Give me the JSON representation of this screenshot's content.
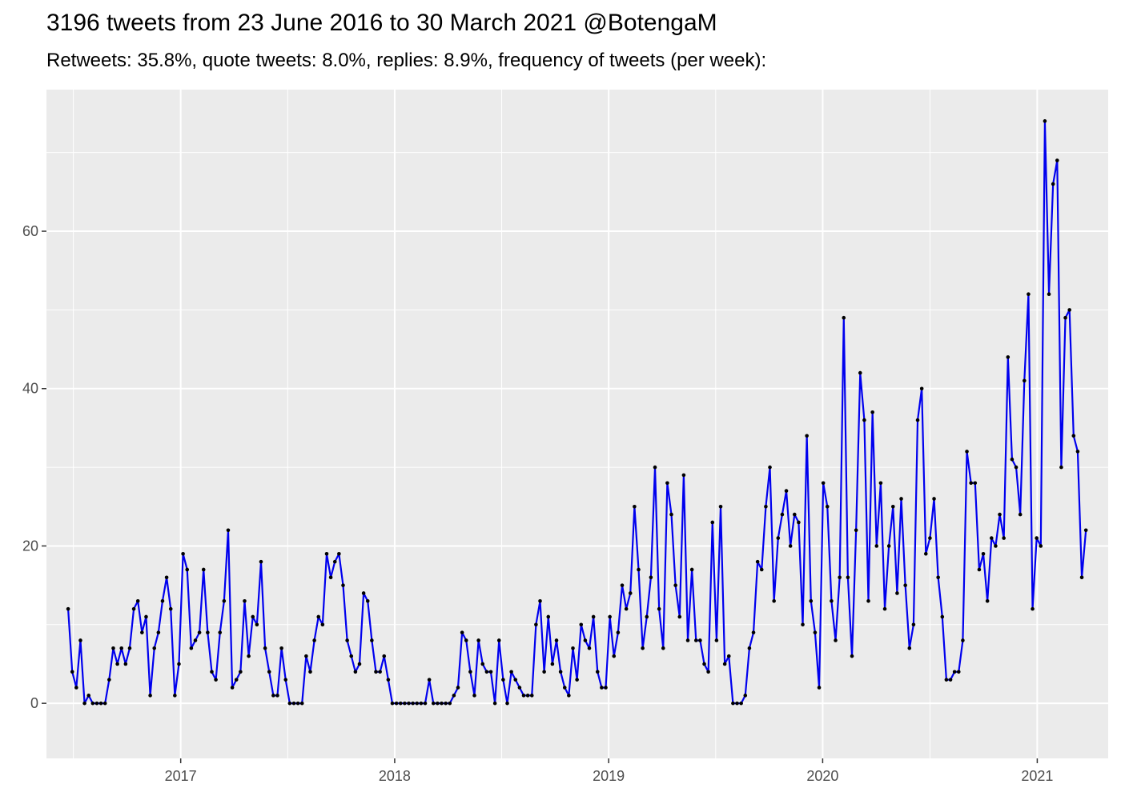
{
  "title": "3196 tweets from 23 June 2016 to 30 March 2021 @BotengaM",
  "subtitle": "Retweets: 35.8%, quote tweets: 8.0%, replies: 8.9%, frequency of tweets (per week):",
  "chart_data": {
    "type": "line",
    "title": "3196 tweets from 23 June 2016 to 30 March 2021 @BotengaM",
    "subtitle": "Retweets: 35.8%, quote tweets: 8.0%, replies: 8.9%, frequency of tweets (per week):",
    "xlabel": "",
    "ylabel": "",
    "x_start": "2016-06-23",
    "x_step_days": 7,
    "xlim": [
      "2016-05-17",
      "2021-05-02"
    ],
    "ylim": [
      -7,
      78
    ],
    "x_ticks": [
      "2017",
      "2018",
      "2019",
      "2020",
      "2021"
    ],
    "y_ticks": [
      0,
      20,
      40,
      60
    ],
    "grid": true,
    "background": "#ebebeb",
    "line_color": "#0000ee",
    "point_color": "#000000",
    "series": [
      {
        "values": [
          12,
          4,
          2,
          8,
          0,
          1,
          0,
          0,
          0,
          0,
          3,
          7,
          5,
          7,
          5,
          7,
          12,
          13,
          9,
          11,
          1,
          7,
          9,
          13,
          16,
          12,
          1,
          5,
          19,
          17,
          7,
          8,
          9,
          17,
          9,
          4,
          3,
          9,
          13,
          22,
          2,
          3,
          4,
          13,
          6,
          11,
          10,
          18,
          7,
          4,
          1,
          1,
          7,
          3,
          0,
          0,
          0,
          0,
          6,
          4,
          8,
          11,
          10,
          19,
          16,
          18,
          19,
          15,
          8,
          6,
          4,
          5,
          14,
          13,
          8,
          4,
          4,
          6,
          3,
          0,
          0,
          0,
          0,
          0,
          0,
          0,
          0,
          0,
          3,
          0,
          0,
          0,
          0,
          0,
          1,
          2,
          9,
          8,
          4,
          1,
          8,
          5,
          4,
          4,
          0,
          8,
          3,
          0,
          4,
          3,
          2,
          1,
          1,
          1,
          10,
          13,
          4,
          11,
          5,
          8,
          4,
          2,
          1,
          7,
          3,
          10,
          8,
          7,
          11,
          4,
          2,
          2,
          11,
          6,
          9,
          15,
          12,
          14,
          25,
          17,
          7,
          11,
          16,
          30,
          12,
          7,
          28,
          24,
          15,
          11,
          29,
          8,
          17,
          8,
          8,
          5,
          4,
          23,
          8,
          25,
          5,
          6,
          0,
          0,
          0,
          1,
          7,
          9,
          18,
          17,
          25,
          30,
          13,
          21,
          24,
          27,
          20,
          24,
          23,
          10,
          34,
          13,
          9,
          2,
          28,
          25,
          13,
          8,
          16,
          49,
          16,
          6,
          22,
          42,
          36,
          13,
          37,
          20,
          28,
          12,
          20,
          25,
          14,
          26,
          15,
          7,
          10,
          36,
          40,
          19,
          21,
          26,
          16,
          11,
          3,
          3,
          4,
          4,
          8,
          32,
          28,
          28,
          17,
          19,
          13,
          21,
          20,
          24,
          21,
          44,
          31,
          30,
          24,
          41,
          52,
          12,
          21,
          20,
          74,
          52,
          66,
          69,
          30,
          49,
          50,
          34,
          32,
          16,
          22
        ]
      }
    ]
  }
}
